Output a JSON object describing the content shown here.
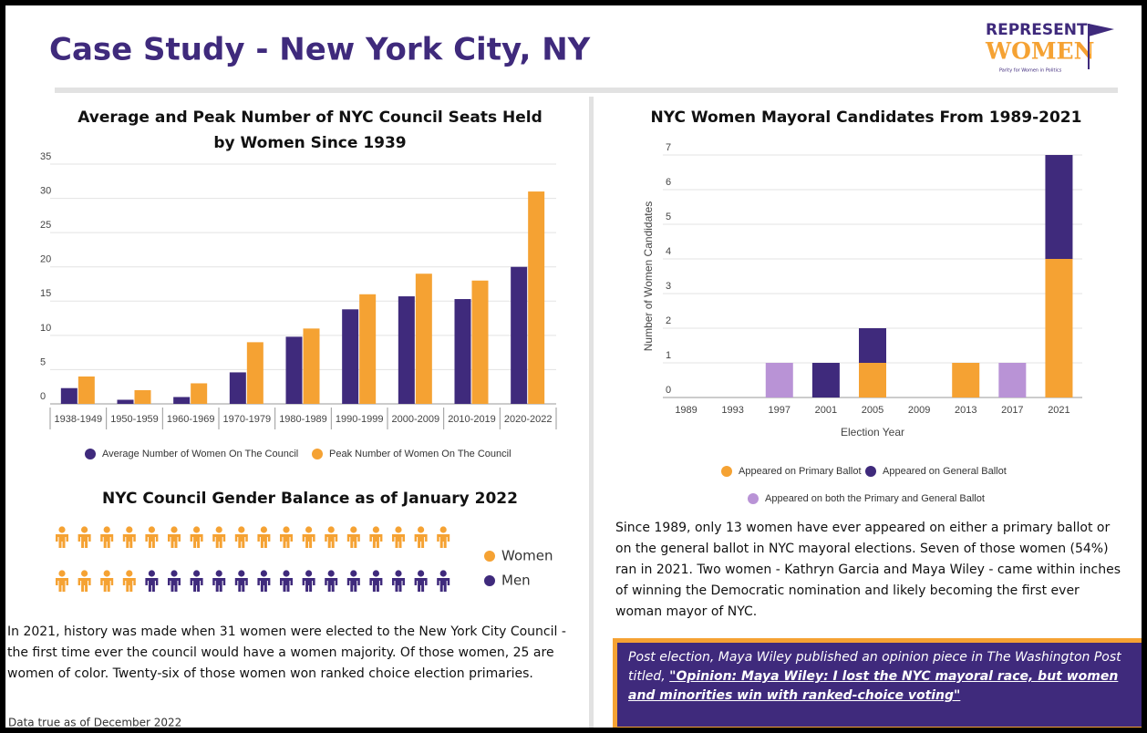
{
  "header": {
    "title": "Case Study - New York City, NY"
  },
  "logo": {
    "line1": "REPRESENT",
    "line2": "WOMEN",
    "tagline": "Parity for Women in Politics"
  },
  "chart_data": [
    {
      "type": "bar",
      "title": "Average and Peak Number of NYC Council Seats Held by Women Since 1939",
      "categories": [
        "1938-1949",
        "1950-1959",
        "1960-1969",
        "1970-1979",
        "1980-1989",
        "1990-1999",
        "2000-2009",
        "2010-2019",
        "2020-2022"
      ],
      "series": [
        {
          "name": "Average Number of Women On The Council",
          "color": "#3f2a7c",
          "values": [
            2.3,
            0.6,
            1,
            4.6,
            9.8,
            13.8,
            15.7,
            15.3,
            20
          ]
        },
        {
          "name": "Peak Number of Women On The Council",
          "color": "#f5a233",
          "values": [
            4,
            2,
            3,
            9,
            11,
            16,
            19,
            18,
            31
          ]
        }
      ],
      "ylim": [
        0,
        35
      ],
      "yticks": [
        0,
        5,
        10,
        15,
        20,
        25,
        30,
        35
      ],
      "grid": true
    },
    {
      "type": "stacked_bar",
      "title": "NYC Women Mayoral Candidates From 1989-2021",
      "x_label": "Election Year",
      "y_label": "Number of Women Candidates",
      "categories": [
        "1989",
        "1993",
        "1997",
        "2001",
        "2005",
        "2009",
        "2013",
        "2017",
        "2021"
      ],
      "series": [
        {
          "name": "Appeared on Primary Ballot",
          "color": "#f5a233",
          "values": [
            0,
            0,
            0,
            0,
            1,
            0,
            1,
            0,
            4
          ]
        },
        {
          "name": "Appeared on General Ballot",
          "color": "#3f2a7c",
          "values": [
            0,
            0,
            0,
            1,
            1,
            0,
            0,
            0,
            3
          ]
        },
        {
          "name": "Appeared on both the Primary and General Ballot",
          "color": "#b993d6",
          "values": [
            0,
            0,
            1,
            0,
            0,
            0,
            0,
            1,
            0
          ]
        }
      ],
      "ylim": [
        0,
        7
      ],
      "yticks": [
        0,
        1,
        2,
        3,
        4,
        5,
        6,
        7
      ],
      "grid": true
    },
    {
      "type": "pictogram",
      "title": "NYC Council Gender Balance as of January 2022",
      "series": [
        {
          "name": "Women",
          "color": "#f5a233",
          "values": [
            22
          ]
        },
        {
          "name": "Men",
          "color": "#3f2a7c",
          "values": [
            14
          ]
        }
      ]
    }
  ],
  "paragraphs": {
    "council": "In 2021, history was made when 31 women were elected to the New York City Council - the first time ever the council would have a women majority. Of those women, 25 are women of color. Twenty-six of those women won ranked choice election primaries.",
    "mayoral": "Since 1989, only 13 women have ever appeared on either a primary ballot or on the general ballot in NYC mayoral elections. Seven of those women (54%) ran in 2021. Two women - Kathryn Garcia and Maya Wiley - came within inches of winning the Democratic nomination and likely becoming the first ever woman mayor of NYC."
  },
  "callout": {
    "text": "Post election, Maya Wiley published an opinion piece in The Washington Post titled, ",
    "link": "\"Opinion: Maya Wiley: I lost the NYC mayoral race, but women and minorities win with ranked-choice voting\""
  },
  "footer": "Data true as of December 2022"
}
